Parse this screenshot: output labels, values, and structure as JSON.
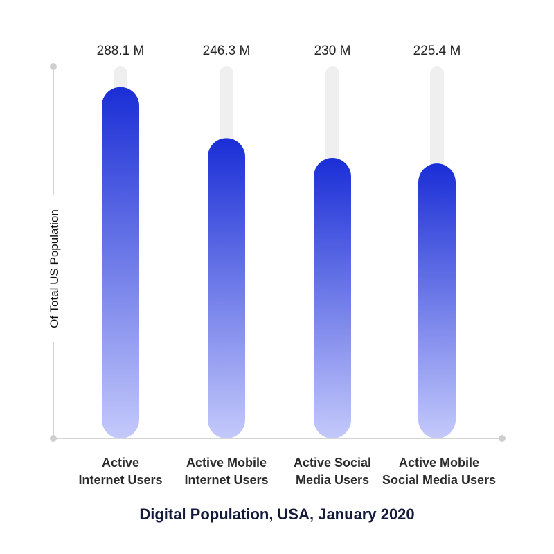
{
  "chart_data": {
    "type": "bar",
    "title": "Digital Population, USA, January 2020",
    "ylabel": "Of Total US Population",
    "xlabel": "",
    "categories": [
      [
        "Active",
        "Internet Users"
      ],
      [
        "Active Mobile",
        "Internet Users"
      ],
      [
        "Active Social",
        "Media Users"
      ],
      [
        "Active Mobile",
        "Social Media Users"
      ]
    ],
    "values": [
      288.1,
      246.3,
      230,
      225.4
    ],
    "value_labels": [
      "288.1 M",
      "246.3 M",
      "230 M",
      "225.4 M"
    ],
    "unit": "M",
    "ylim": [
      0,
      305
    ],
    "grid": false,
    "legend": "none",
    "colors": {
      "bar_top": "#1a2ed6",
      "bar_bottom": "#c4c9fb",
      "track": "#efefef",
      "axis": "#d4d4d4",
      "axis_dot": "#cfcfcf"
    }
  }
}
